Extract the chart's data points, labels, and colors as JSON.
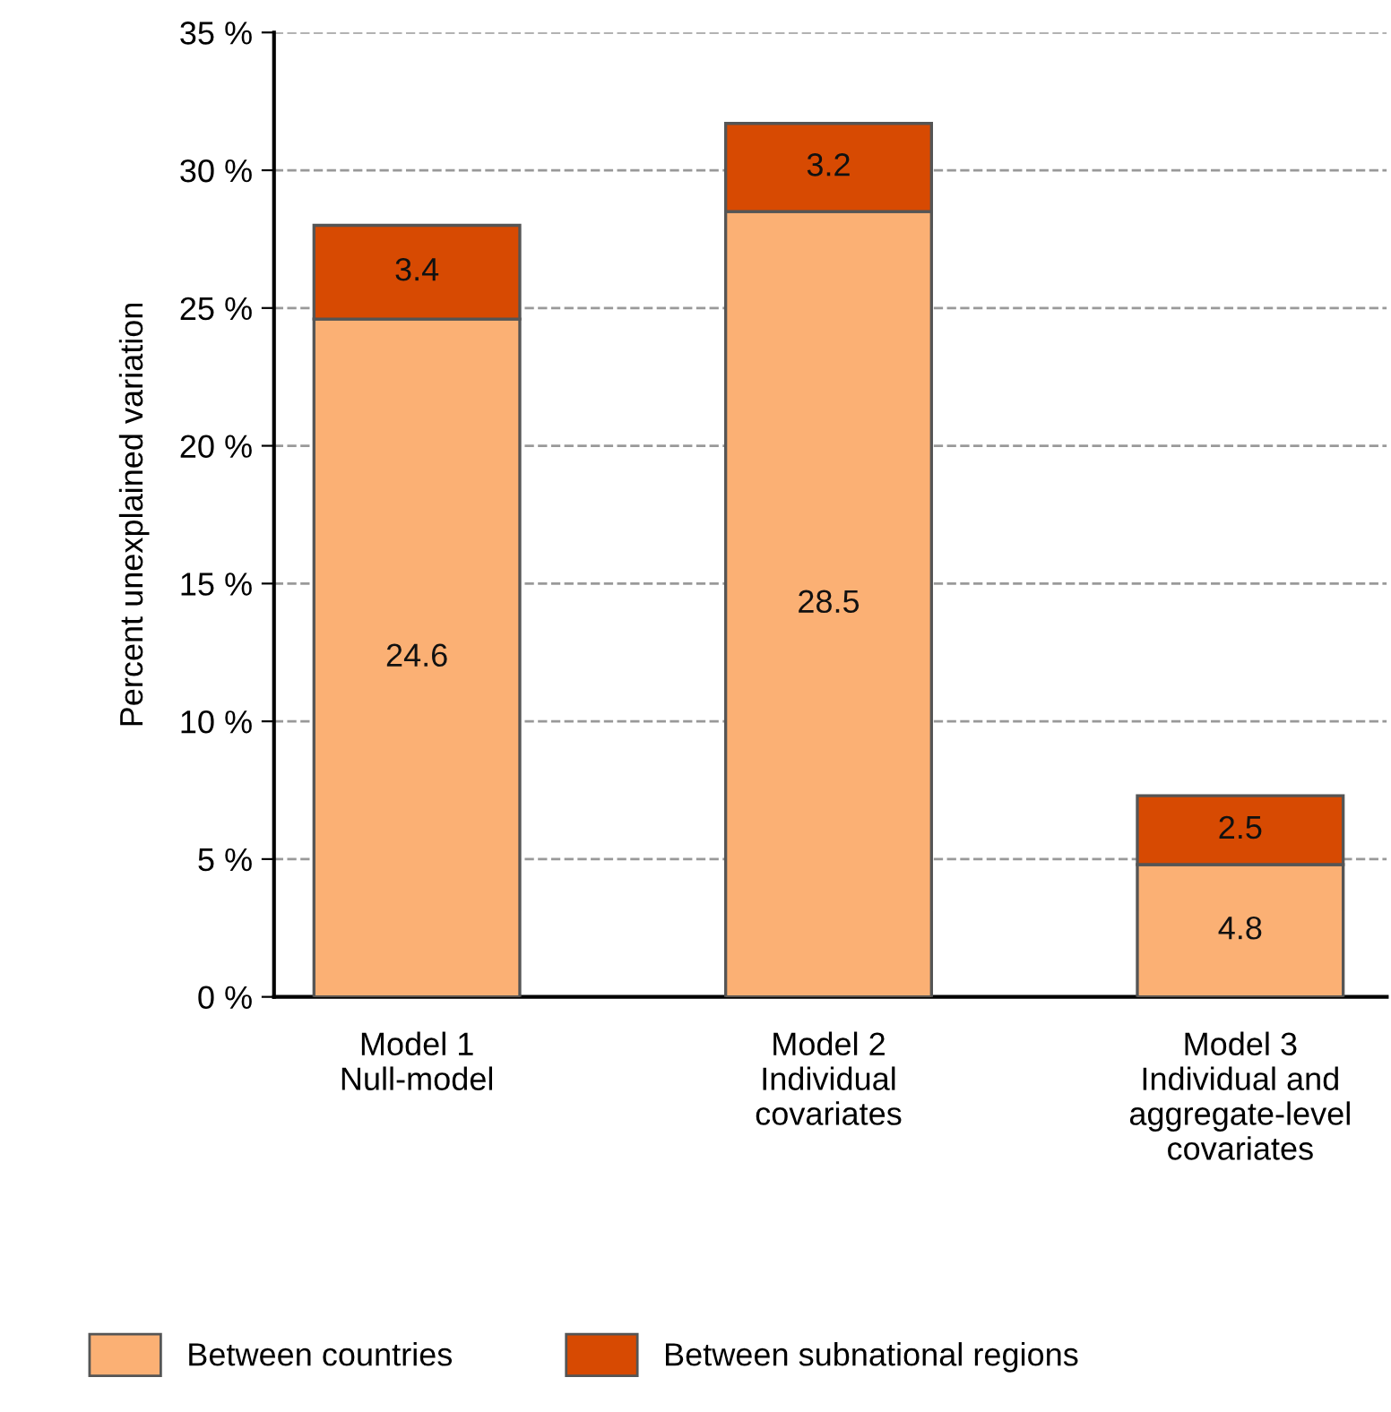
{
  "chart_data": {
    "type": "bar",
    "stacked": true,
    "ylabel": "Percent unexplained variation",
    "categories": [
      "Model 1\nNull-model",
      "Model 2\nIndividual\ncovariates",
      "Model 3\nIndividual and\naggregate-level\ncovariates"
    ],
    "series": [
      {
        "name": "Between countries",
        "color": "#fbb074",
        "values": [
          24.6,
          28.5,
          4.8
        ]
      },
      {
        "name": "Between subnational regions",
        "color": "#d74a02",
        "values": [
          3.4,
          3.2,
          2.5
        ]
      }
    ],
    "ylim": [
      0,
      35
    ],
    "yticks": [
      {
        "value": 0,
        "label": "0 %"
      },
      {
        "value": 5,
        "label": "5 %"
      },
      {
        "value": 10,
        "label": "10 %"
      },
      {
        "value": 15,
        "label": "15 %"
      },
      {
        "value": 20,
        "label": "20 %"
      },
      {
        "value": 25,
        "label": "25 %"
      },
      {
        "value": 30,
        "label": "30 %"
      },
      {
        "value": 35,
        "label": "35 %"
      }
    ],
    "grid": "y",
    "legend": "bottom",
    "data_labels": true
  }
}
